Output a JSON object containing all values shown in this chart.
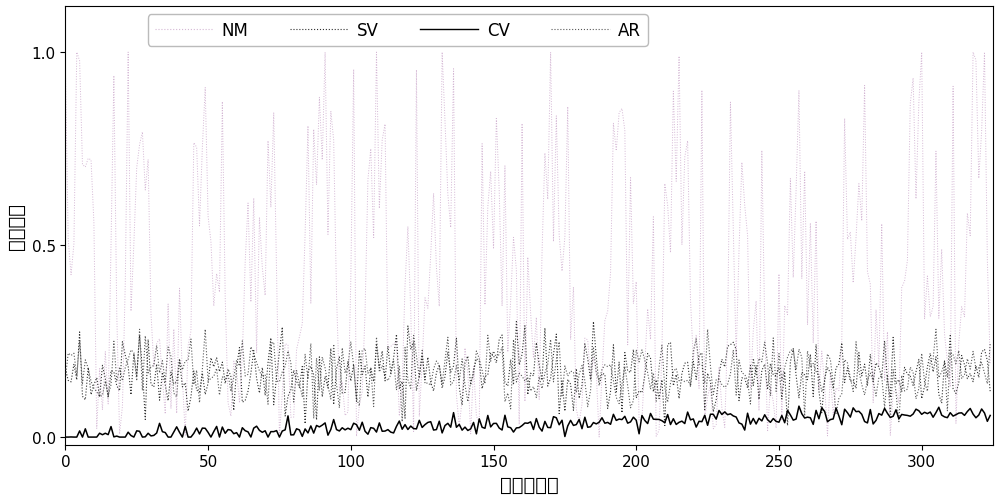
{
  "title": "",
  "xlabel": "分类器序号",
  "ylabel": "泛化误差",
  "xlim": [
    0,
    325
  ],
  "ylim": [
    -0.02,
    1.12
  ],
  "yticks": [
    0,
    0.5,
    1
  ],
  "xticks": [
    0,
    50,
    100,
    150,
    200,
    250,
    300
  ],
  "n_points": 325,
  "nm_color": "#d0b0d0",
  "sv_color": "#303030",
  "cv_color": "#000000",
  "ar_color": "#303030",
  "background": "#ffffff",
  "legend_labels": [
    "NM",
    "SV",
    "CV",
    "AR"
  ],
  "figsize": [
    10.0,
    5.02
  ],
  "dpi": 100
}
